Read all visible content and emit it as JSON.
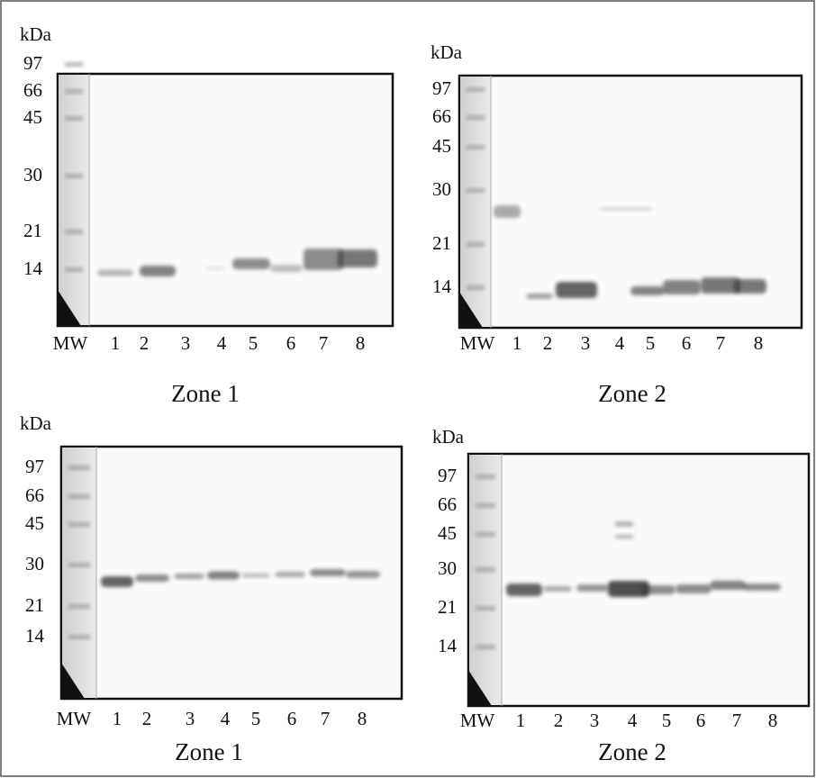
{
  "panels": [
    {
      "unit": "kDa",
      "markers": [
        "97",
        "66",
        "45",
        "30",
        "21",
        "14"
      ],
      "lanes": [
        "MW",
        "1",
        "2",
        "3",
        "4",
        "5",
        "6",
        "7",
        "8"
      ],
      "zone": "Zone 1"
    },
    {
      "unit": "kDa",
      "markers": [
        "97",
        "66",
        "45",
        "30",
        "21",
        "14"
      ],
      "lanes": [
        "MW",
        "1",
        "2",
        "3",
        "4",
        "5",
        "6",
        "7",
        "8"
      ],
      "zone": "Zone 2"
    },
    {
      "unit": "kDa",
      "markers": [
        "97",
        "66",
        "45",
        "30",
        "21",
        "14"
      ],
      "lanes": [
        "MW",
        "1",
        "2",
        "3",
        "4",
        "5",
        "6",
        "7",
        "8"
      ],
      "zone": "Zone 1"
    },
    {
      "unit": "kDa",
      "markers": [
        "97",
        "66",
        "45",
        "30",
        "21",
        "14"
      ],
      "lanes": [
        "MW",
        "1",
        "2",
        "3",
        "4",
        "5",
        "6",
        "7",
        "8"
      ],
      "zone": "Zone 2"
    }
  ]
}
